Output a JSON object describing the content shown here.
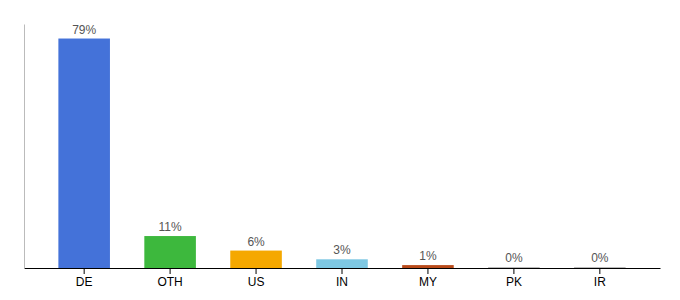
{
  "chart_data": {
    "type": "bar",
    "categories": [
      "DE",
      "OTH",
      "US",
      "IN",
      "MY",
      "PK",
      "IR"
    ],
    "values": [
      79,
      11,
      6,
      3,
      1,
      0.3,
      0.3
    ],
    "value_labels": [
      "79%",
      "11%",
      "6%",
      "3%",
      "1%",
      "0%",
      "0%"
    ],
    "colors": [
      "#4472d9",
      "#3db83d",
      "#f5a800",
      "#7ec8e3",
      "#b94a1a",
      "#b0b0b0",
      "#b0b0b0"
    ],
    "ylim": [
      0,
      84
    ],
    "data_labels": true,
    "tick_labels": "x",
    "grid": false
  }
}
